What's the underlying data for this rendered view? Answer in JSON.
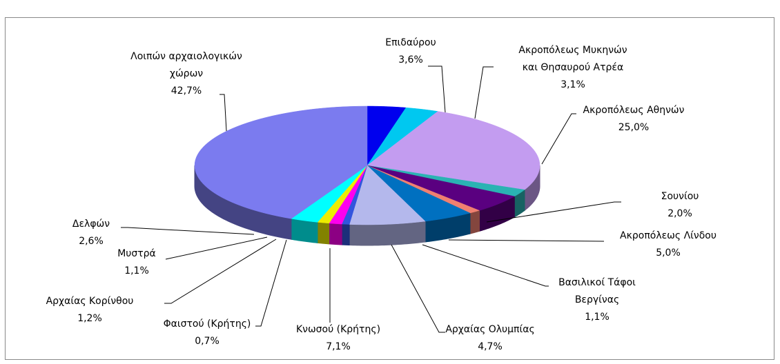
{
  "chart_data": {
    "type": "pie3d",
    "categories": [
      "Επιδαύρου",
      "Ακροπόλεως Μυκηνών\nκαι Θησαυρού Ατρέα",
      "Ακροπόλεως Αθηνών",
      "Σουνίου",
      "Ακροπόλεως Λίνδου",
      "Βασιλικοί Τάφοι\nΒεργίνας",
      "Αρχαίας Ολυμπίας",
      "Κνωσού (Κρήτης)",
      "Φαιστού (Κρήτης)",
      "Αρχαίας Κορίνθου",
      "Μυστρά",
      "Δελφών",
      "Λοιπών αρχαιολογικών\nχώρων"
    ],
    "values": [
      3.6,
      3.1,
      25.0,
      2.0,
      5.0,
      1.1,
      4.7,
      7.1,
      0.7,
      1.2,
      1.1,
      2.6,
      42.7
    ],
    "value_labels": [
      "3,6%",
      "3,1%",
      "25,0%",
      "2,0%",
      "5,0%",
      "1,1%",
      "4,7%",
      "7,1%",
      "0,7%",
      "1,2%",
      "1,1%",
      "2,6%",
      "42,7%"
    ],
    "colors": [
      "#0000ee",
      "#00c8f0",
      "#c39cf0",
      "#2ab3b3",
      "#5a0080",
      "#f08070",
      "#0070c0",
      "#b4b8ec",
      "#3355dd",
      "#ff00ee",
      "#ecec00",
      "#00ffff",
      "#7b7bef"
    ]
  }
}
